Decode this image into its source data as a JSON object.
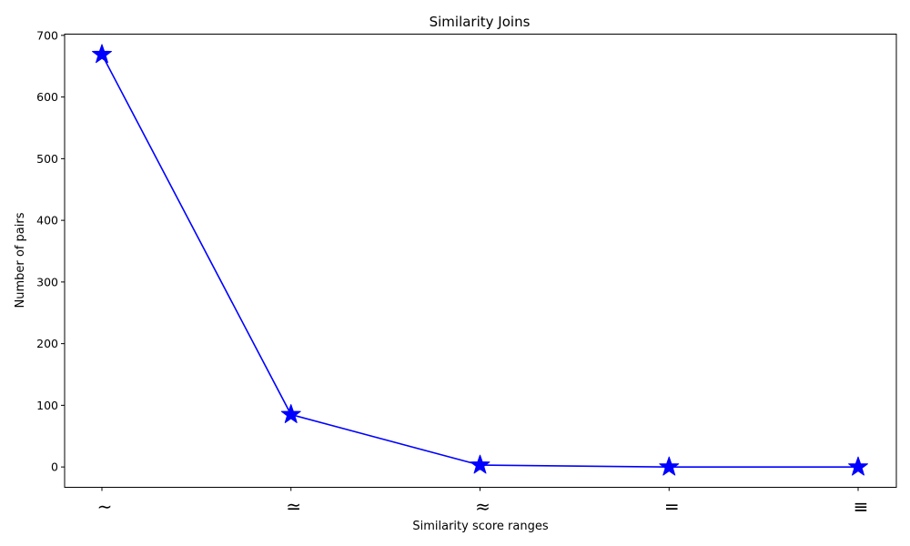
{
  "chart_data": {
    "type": "line",
    "title": "Similarity Joins",
    "xlabel": "Similarity score ranges",
    "ylabel": "Number of pairs",
    "categories": [
      "∼",
      "≃",
      "≈",
      "=",
      "≡"
    ],
    "series": [
      {
        "values": [
          669,
          85,
          3,
          0,
          0
        ],
        "color": "#0000ff",
        "marker": "star"
      }
    ],
    "yticks": [
      0,
      100,
      200,
      300,
      400,
      500,
      600,
      700
    ],
    "ylim": [
      -33,
      702
    ],
    "grid": false,
    "legend": "none"
  }
}
